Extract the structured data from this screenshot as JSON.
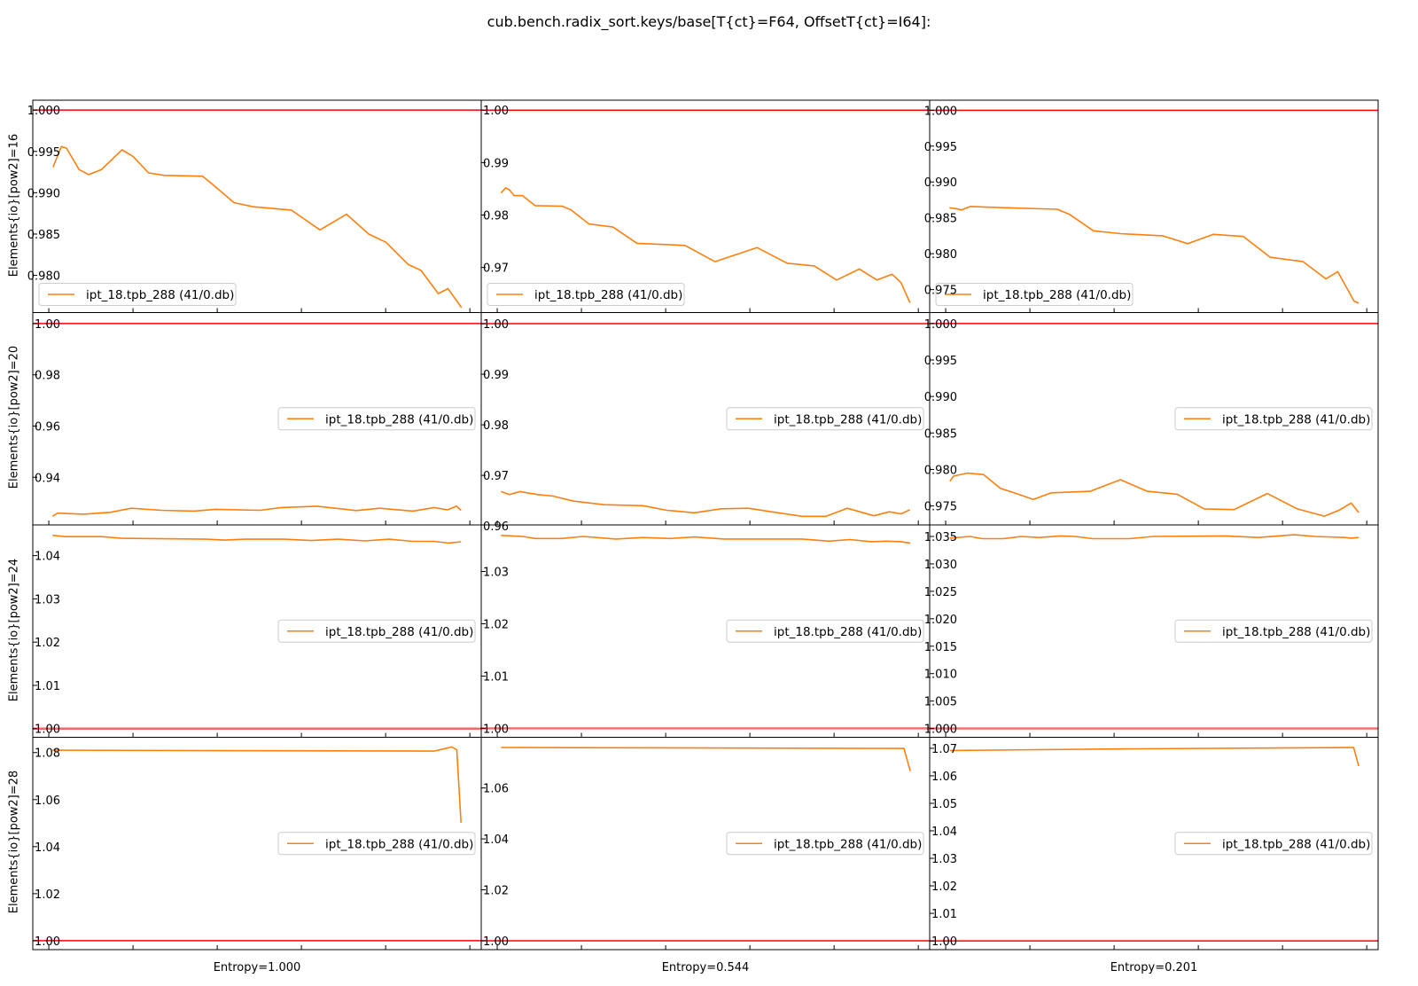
{
  "title": "cub.bench.radix_sort.keys/base[T{ct}=F64, OffsetT{ct}=I64]:",
  "row_labels": [
    "Elements{io}[pow2]=16",
    "Elements{io}[pow2]=20",
    "Elements{io}[pow2]=24",
    "Elements{io}[pow2]=28"
  ],
  "col_labels": [
    "Entropy=1.000",
    "Entropy=0.544",
    "Entropy=0.201"
  ],
  "colors": {
    "series": "#ff7f0e",
    "reference": "#ff0000",
    "reference_row3": "#ff6666"
  },
  "chart_data": [
    {
      "type": "line",
      "row": 0,
      "col": 0,
      "xlim": [
        -3.8,
        102.7
      ],
      "xticks": [
        0,
        20,
        40,
        60,
        80,
        100
      ],
      "ylim": [
        0.9755,
        1.0012
      ],
      "reference_y": 1.0,
      "legend_loc": "lower-left",
      "yticks": [
        {
          "v": 0.98,
          "label": "0.980"
        },
        {
          "v": 0.985,
          "label": "0.985"
        },
        {
          "v": 0.99,
          "label": "0.990"
        },
        {
          "v": 0.995,
          "label": "0.995"
        },
        {
          "v": 1.0,
          "label": "1.000"
        }
      ],
      "series": [
        {
          "name": "ipt_18.tpb_288 (41/0.db)",
          "x": [
            1,
            3,
            4.2,
            7.2,
            9.5,
            12.5,
            17.4,
            20,
            23.7,
            27.5,
            36.5,
            38.7,
            44,
            48.6,
            57.6,
            64.4,
            70.7,
            76,
            80.1,
            85.4,
            88.4,
            92.5,
            94.8,
            98
          ],
          "y": [
            0.9931,
            0.9956,
            0.9954,
            0.9928,
            0.9922,
            0.9928,
            0.9952,
            0.9944,
            0.9924,
            0.9921,
            0.992,
            0.9911,
            0.9888,
            0.9883,
            0.9879,
            0.9855,
            0.9874,
            0.985,
            0.984,
            0.9813,
            0.9806,
            0.9778,
            0.9784,
            0.9761
          ]
        }
      ]
    },
    {
      "type": "line",
      "row": 0,
      "col": 1,
      "xlim": [
        -3.8,
        102.7
      ],
      "xticks": [
        0,
        20,
        40,
        60,
        80,
        100
      ],
      "ylim": [
        0.9614,
        1.0019
      ],
      "reference_y": 1.0,
      "legend_loc": "lower-left",
      "yticks": [
        {
          "v": 0.97,
          "label": "0.97"
        },
        {
          "v": 0.98,
          "label": "0.98"
        },
        {
          "v": 0.99,
          "label": "0.99"
        },
        {
          "v": 1.0,
          "label": "1.00"
        }
      ],
      "series": [
        {
          "name": "ipt_18.tpb_288 (41/0.db)",
          "x": [
            0.9,
            2,
            2.9,
            4,
            6,
            9,
            15.4,
            17.5,
            21.8,
            27.5,
            33.2,
            44.6,
            51.7,
            61.7,
            68.9,
            75.3,
            80.6,
            86,
            90.2,
            93.8,
            95.9,
            98
          ],
          "y": [
            0.9842,
            0.9852,
            0.9848,
            0.9837,
            0.9837,
            0.9818,
            0.9817,
            0.981,
            0.9783,
            0.9777,
            0.9746,
            0.9742,
            0.9711,
            0.9738,
            0.9708,
            0.9703,
            0.9676,
            0.9697,
            0.9676,
            0.9687,
            0.9671,
            0.9633
          ]
        }
      ]
    },
    {
      "type": "line",
      "row": 0,
      "col": 2,
      "xlim": [
        -3.8,
        102.7
      ],
      "xticks": [
        0,
        20,
        40,
        60,
        80,
        100
      ],
      "ylim": [
        0.9718,
        1.0014
      ],
      "reference_y": 1.0,
      "legend_loc": "lower-left",
      "yticks": [
        {
          "v": 0.975,
          "label": "0.975"
        },
        {
          "v": 0.98,
          "label": "0.980"
        },
        {
          "v": 0.985,
          "label": "0.985"
        },
        {
          "v": 0.99,
          "label": "0.990"
        },
        {
          "v": 0.995,
          "label": "0.995"
        },
        {
          "v": 1.0,
          "label": "1.000"
        }
      ],
      "series": [
        {
          "name": "ipt_18.tpb_288 (41/0.db)",
          "x": [
            0.9,
            2.3,
            3.8,
            5.9,
            9.5,
            26.5,
            29.4,
            35.1,
            41.5,
            51.5,
            57.5,
            63.6,
            70.7,
            77.1,
            84.9,
            90.3,
            93.1,
            97,
            98.1
          ],
          "y": [
            0.9864,
            0.9863,
            0.9861,
            0.9866,
            0.9865,
            0.9862,
            0.9855,
            0.9832,
            0.9828,
            0.9825,
            0.9814,
            0.9827,
            0.9824,
            0.9795,
            0.9789,
            0.9765,
            0.9775,
            0.9734,
            0.9731
          ]
        }
      ]
    },
    {
      "type": "line",
      "row": 1,
      "col": 0,
      "xlim": [
        -3.8,
        102.7
      ],
      "xticks": [
        0,
        20,
        40,
        60,
        80,
        100
      ],
      "ylim": [
        0.9214,
        1.0043
      ],
      "reference_y": 1.0,
      "legend_loc": "center-right",
      "yticks": [
        {
          "v": 0.94,
          "label": "0.94"
        },
        {
          "v": 0.96,
          "label": "0.96"
        },
        {
          "v": 0.98,
          "label": "0.98"
        },
        {
          "v": 1.0,
          "label": "1.00"
        }
      ],
      "series": [
        {
          "name": "ipt_18.tpb_288 (41/0.db)",
          "x": [
            0.9,
            2.1,
            8.2,
            14.6,
            19.6,
            26.7,
            34.5,
            39.5,
            50.2,
            55.2,
            63.7,
            73,
            78.6,
            86.5,
            91.5,
            94.7,
            96.8,
            97.9
          ],
          "y": [
            0.9248,
            0.926,
            0.9256,
            0.9263,
            0.9279,
            0.9271,
            0.9268,
            0.9275,
            0.9271,
            0.9282,
            0.9287,
            0.927,
            0.9279,
            0.9268,
            0.9282,
            0.9273,
            0.9287,
            0.9271
          ]
        }
      ]
    },
    {
      "type": "line",
      "row": 1,
      "col": 1,
      "xlim": [
        -3.8,
        102.7
      ],
      "xticks": [
        0,
        20,
        40,
        60,
        80,
        100
      ],
      "ylim": [
        0.9602,
        1.0022
      ],
      "reference_y": 1.0,
      "legend_loc": "center-right",
      "yticks": [
        {
          "v": 0.96,
          "label": "0.96"
        },
        {
          "v": 0.97,
          "label": "0.97"
        },
        {
          "v": 0.98,
          "label": "0.98"
        },
        {
          "v": 0.99,
          "label": "0.99"
        },
        {
          "v": 1.0,
          "label": "1.00"
        }
      ],
      "series": [
        {
          "name": "ipt_18.tpb_288 (41/0.db)",
          "x": [
            0.9,
            2.9,
            5.4,
            9.7,
            13.3,
            18.2,
            25.4,
            34.6,
            40.3,
            46.8,
            53.2,
            59.6,
            66.7,
            72.4,
            78.1,
            83.1,
            89.5,
            93.1,
            95.9,
            98
          ],
          "y": [
            0.9668,
            0.9662,
            0.9668,
            0.9662,
            0.9659,
            0.9649,
            0.9642,
            0.964,
            0.9631,
            0.9626,
            0.9634,
            0.9635,
            0.9626,
            0.9619,
            0.9619,
            0.9635,
            0.962,
            0.9628,
            0.9624,
            0.9632
          ]
        }
      ]
    },
    {
      "type": "line",
      "row": 1,
      "col": 2,
      "xlim": [
        -3.8,
        102.7
      ],
      "xticks": [
        0,
        20,
        40,
        60,
        80,
        100
      ],
      "ylim": [
        0.9724,
        1.0015
      ],
      "reference_y": 1.0,
      "legend_loc": "center-right",
      "yticks": [
        {
          "v": 0.975,
          "label": "0.975"
        },
        {
          "v": 0.98,
          "label": "0.980"
        },
        {
          "v": 0.985,
          "label": "0.985"
        },
        {
          "v": 0.99,
          "label": "0.990"
        },
        {
          "v": 0.995,
          "label": "0.995"
        },
        {
          "v": 1.0,
          "label": "1.000"
        }
      ],
      "series": [
        {
          "name": "ipt_18.tpb_288 (41/0.db)",
          "x": [
            1,
            1.9,
            5.1,
            9,
            13,
            15.8,
            20.8,
            25.1,
            34.3,
            41.5,
            47.9,
            55,
            61.4,
            68.5,
            76.4,
            83.5,
            89.9,
            93.4,
            96.3,
            98.1
          ],
          "y": [
            0.9784,
            0.9791,
            0.9795,
            0.9793,
            0.9774,
            0.9769,
            0.9759,
            0.9768,
            0.977,
            0.9786,
            0.977,
            0.9766,
            0.9746,
            0.9745,
            0.9767,
            0.9746,
            0.9736,
            0.9744,
            0.9754,
            0.9741
          ]
        }
      ]
    },
    {
      "type": "line",
      "row": 2,
      "col": 0,
      "xlim": [
        -3.8,
        102.7
      ],
      "xticks": [
        0,
        20,
        40,
        60,
        80,
        100
      ],
      "ylim": [
        0.998,
        1.0471
      ],
      "reference_y": 1.0,
      "legend_loc": "center-right",
      "yticks": [
        {
          "v": 1.0,
          "label": "1.00"
        },
        {
          "v": 1.01,
          "label": "1.01"
        },
        {
          "v": 1.02,
          "label": "1.02"
        },
        {
          "v": 1.03,
          "label": "1.03"
        },
        {
          "v": 1.04,
          "label": "1.04"
        }
      ],
      "series": [
        {
          "name": "ipt_18.tpb_288 (41/0.db)",
          "x": [
            0.9,
            3.9,
            12.5,
            17.4,
            37.4,
            41.6,
            46.6,
            55.9,
            62.3,
            68.7,
            75.1,
            80.8,
            86.5,
            91.5,
            95,
            97.9
          ],
          "y": [
            1.0447,
            1.0444,
            1.0444,
            1.044,
            1.0438,
            1.0436,
            1.0438,
            1.0438,
            1.0435,
            1.0438,
            1.0434,
            1.0438,
            1.0433,
            1.0433,
            1.0429,
            1.0432
          ]
        }
      ]
    },
    {
      "type": "line",
      "row": 2,
      "col": 1,
      "xlim": [
        -3.8,
        102.7
      ],
      "xticks": [
        0,
        20,
        40,
        60,
        80,
        100
      ],
      "ylim": [
        0.9983,
        1.0389
      ],
      "reference_y": 1.0,
      "legend_loc": "center-right",
      "yticks": [
        {
          "v": 1.0,
          "label": "1.00"
        },
        {
          "v": 1.01,
          "label": "1.01"
        },
        {
          "v": 1.02,
          "label": "1.02"
        },
        {
          "v": 1.03,
          "label": "1.03"
        }
      ],
      "series": [
        {
          "name": "ipt_18.tpb_288 (41/0.db)",
          "x": [
            0.9,
            6.1,
            9,
            15.4,
            20.4,
            28.2,
            34.6,
            41.1,
            46.8,
            53.9,
            72.4,
            78.8,
            83.8,
            88.8,
            92.4,
            95.9,
            98.1
          ],
          "y": [
            1.0369,
            1.0367,
            1.0363,
            1.0363,
            1.0367,
            1.0362,
            1.0365,
            1.0363,
            1.0366,
            1.0362,
            1.0362,
            1.0358,
            1.0361,
            1.0357,
            1.0358,
            1.0357,
            1.0354
          ]
        }
      ]
    },
    {
      "type": "line",
      "row": 2,
      "col": 2,
      "xlim": [
        -3.8,
        102.7
      ],
      "xticks": [
        0,
        20,
        40,
        60,
        80,
        100
      ],
      "ylim": [
        0.9984,
        1.0371
      ],
      "reference_y": 1.0,
      "legend_loc": "center-right",
      "yticks": [
        {
          "v": 1.0,
          "label": "1.000"
        },
        {
          "v": 1.005,
          "label": "1.005"
        },
        {
          "v": 1.01,
          "label": "1.010"
        },
        {
          "v": 1.015,
          "label": "1.015"
        },
        {
          "v": 1.02,
          "label": "1.020"
        },
        {
          "v": 1.025,
          "label": "1.025"
        },
        {
          "v": 1.03,
          "label": "1.030"
        },
        {
          "v": 1.035,
          "label": "1.035"
        }
      ],
      "series": [
        {
          "name": "ipt_18.tpb_288 (41/0.db)",
          "x": [
            1,
            5.8,
            8.7,
            13.7,
            17.9,
            22.2,
            27.2,
            30.8,
            35,
            43.6,
            49.3,
            66.4,
            74.2,
            82.8,
            87.7,
            94.9,
            96.3,
            98.1
          ],
          "y": [
            1.0347,
            1.035,
            1.0346,
            1.0346,
            1.035,
            1.0348,
            1.0351,
            1.035,
            1.0346,
            1.0346,
            1.035,
            1.0351,
            1.0348,
            1.0353,
            1.035,
            1.0348,
            1.0347,
            1.0348
          ]
        }
      ]
    },
    {
      "type": "line",
      "row": 3,
      "col": 0,
      "xlim": [
        -3.8,
        102.7
      ],
      "xticks": [
        0,
        20,
        40,
        60,
        80,
        100
      ],
      "ylim": [
        0.9962,
        1.0865
      ],
      "reference_y": 1.0,
      "legend_loc": "center-right",
      "yticks": [
        {
          "v": 1.0,
          "label": "1.00"
        },
        {
          "v": 1.02,
          "label": "1.02"
        },
        {
          "v": 1.04,
          "label": "1.04"
        },
        {
          "v": 1.06,
          "label": "1.06"
        },
        {
          "v": 1.08,
          "label": "1.08"
        }
      ],
      "series": [
        {
          "name": "ipt_18.tpb_288 (41/0.db)",
          "x": [
            0.9,
            91.5,
            93.6,
            95.7,
            96.9,
            97.9
          ],
          "y": [
            1.081,
            1.0806,
            1.0815,
            1.0824,
            1.0812,
            1.0502
          ]
        }
      ]
    },
    {
      "type": "line",
      "row": 3,
      "col": 1,
      "xlim": [
        -3.8,
        102.7
      ],
      "xticks": [
        0,
        20,
        40,
        60,
        80,
        100
      ],
      "ylim": [
        0.9965,
        1.0799
      ],
      "reference_y": 1.0,
      "legend_loc": "center-right",
      "yticks": [
        {
          "v": 1.0,
          "label": "1.00"
        },
        {
          "v": 1.02,
          "label": "1.02"
        },
        {
          "v": 1.04,
          "label": "1.04"
        },
        {
          "v": 1.06,
          "label": "1.06"
        }
      ],
      "series": [
        {
          "name": "ipt_18.tpb_288 (41/0.db)",
          "x": [
            0.9,
            96.6,
            98.1
          ],
          "y": [
            1.0759,
            1.0755,
            1.0666
          ]
        }
      ]
    },
    {
      "type": "line",
      "row": 3,
      "col": 2,
      "xlim": [
        -3.8,
        102.7
      ],
      "xticks": [
        0,
        20,
        40,
        60,
        80,
        100
      ],
      "ylim": [
        0.9968,
        1.074
      ],
      "reference_y": 1.0,
      "legend_loc": "center-right",
      "yticks": [
        {
          "v": 1.0,
          "label": "1.00"
        },
        {
          "v": 1.01,
          "label": "1.01"
        },
        {
          "v": 1.02,
          "label": "1.02"
        },
        {
          "v": 1.03,
          "label": "1.03"
        },
        {
          "v": 1.04,
          "label": "1.04"
        },
        {
          "v": 1.05,
          "label": "1.05"
        },
        {
          "v": 1.06,
          "label": "1.06"
        },
        {
          "v": 1.07,
          "label": "1.07"
        }
      ],
      "series": [
        {
          "name": "ipt_18.tpb_288 (41/0.db)",
          "x": [
            1,
            45,
            96.9,
            98.1
          ],
          "y": [
            1.0692,
            1.0698,
            1.0703,
            1.0635
          ]
        }
      ]
    }
  ]
}
